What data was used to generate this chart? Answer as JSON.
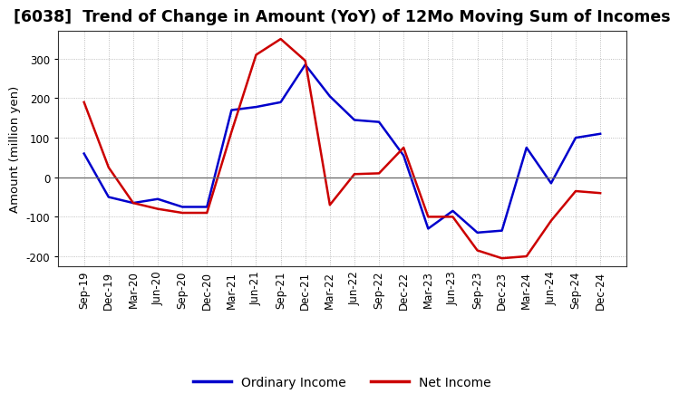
{
  "title": "[6038]  Trend of Change in Amount (YoY) of 12Mo Moving Sum of Incomes",
  "ylabel": "Amount (million yen)",
  "x_labels": [
    "Sep-19",
    "Dec-19",
    "Mar-20",
    "Jun-20",
    "Sep-20",
    "Dec-20",
    "Mar-21",
    "Jun-21",
    "Sep-21",
    "Dec-21",
    "Mar-22",
    "Jun-22",
    "Sep-22",
    "Dec-22",
    "Mar-23",
    "Jun-23",
    "Sep-23",
    "Dec-23",
    "Mar-24",
    "Jun-24",
    "Sep-24",
    "Dec-24"
  ],
  "ordinary_income": [
    60,
    -50,
    -65,
    -55,
    -75,
    -75,
    170,
    178,
    190,
    285,
    205,
    145,
    140,
    55,
    -130,
    -85,
    -140,
    -135,
    75,
    -15,
    100,
    110
  ],
  "net_income": [
    190,
    25,
    -65,
    -80,
    -90,
    -90,
    115,
    310,
    350,
    295,
    -70,
    8,
    10,
    75,
    -100,
    -100,
    -185,
    -205,
    -200,
    -110,
    -35,
    -40
  ],
  "ordinary_income_color": "#0000cc",
  "net_income_color": "#cc0000",
  "ylim": [
    -225,
    370
  ],
  "yticks": [
    -200,
    -100,
    0,
    100,
    200,
    300
  ],
  "background_color": "#ffffff",
  "legend_labels": [
    "Ordinary Income",
    "Net Income"
  ],
  "line_width": 1.8,
  "title_fontsize": 12.5,
  "ylabel_fontsize": 9.5,
  "tick_fontsize": 8.5,
  "legend_fontsize": 10
}
